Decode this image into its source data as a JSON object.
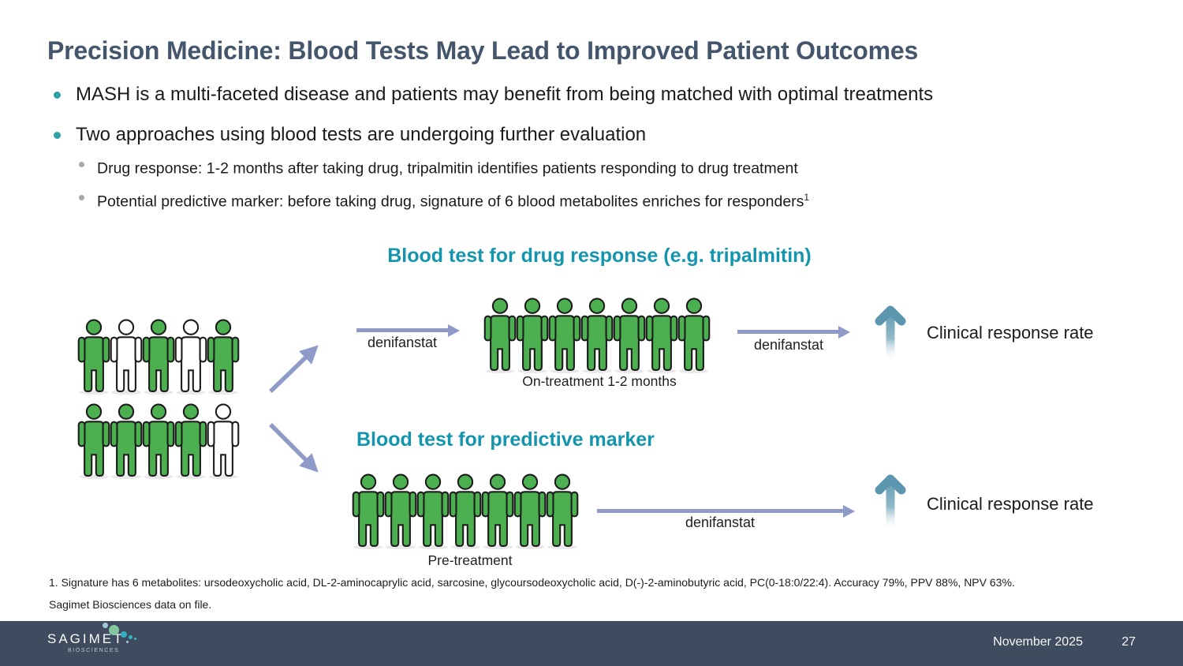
{
  "slide": {
    "title": "Precision Medicine: Blood Tests May Lead to Improved Patient Outcomes",
    "bullets": [
      {
        "text": "MASH is a multi-faceted disease and patients may benefit from being matched with optimal treatments"
      },
      {
        "text": "Two approaches using blood tests are undergoing further evaluation"
      }
    ],
    "sub_bullets": [
      {
        "text": "Drug response: 1-2 months after taking drug, tripalmitin identifies patients responding to drug treatment",
        "sup": ""
      },
      {
        "text": "Potential predictive marker: before taking drug, signature of 6 blood metabolites enriches for responders",
        "sup": "1"
      }
    ]
  },
  "diagram": {
    "heading_drug_response": "Blood test for drug response (e.g. tripalmitin)",
    "heading_predictive": "Blood test for predictive marker",
    "arrow_labels": {
      "top_first": "denifanstat",
      "top_second": "denifanstat",
      "bottom": "denifanstat"
    },
    "on_treatment_label": "On-treatment 1-2 months",
    "pre_treatment_label": "Pre-treatment",
    "clinical_top": "Clinical response rate",
    "clinical_bottom": "Clinical response rate",
    "groups": {
      "initial_row1": [
        "green",
        "white",
        "green",
        "white",
        "green"
      ],
      "initial_row2": [
        "green",
        "green",
        "green",
        "green",
        "white"
      ],
      "on_treatment": [
        "green",
        "green",
        "green",
        "green",
        "green",
        "green",
        "green"
      ],
      "pre_treatment": [
        "green",
        "green",
        "green",
        "green",
        "green",
        "green",
        "green"
      ]
    }
  },
  "footnote": {
    "line1": "1. Signature has 6 metabolites: ursodeoxycholic acid, DL-2-aminocaprylic acid, sarcosine, glycoursodeoxycholic acid, D(-)-2-aminobutyric acid, PC(0-18:0/22:4). Accuracy 79%, PPV 88%, NPV 63%.",
    "line2": "Sagimet Biosciences data on file."
  },
  "footer": {
    "brand": "SAGIMET",
    "brand_sub": "BIOSCIENCES",
    "date": "November 2025",
    "page": "27"
  },
  "colors": {
    "green": "#4cb050",
    "white": "#ffffff",
    "accent_teal": "#1295ad",
    "title_slate": "#44566b",
    "bullet_teal": "#2f9fa8",
    "arrow_periwinkle": "#8e9ac8",
    "uparrow_teal": "#5d97af",
    "footer_bg": "#3f4c5f"
  }
}
